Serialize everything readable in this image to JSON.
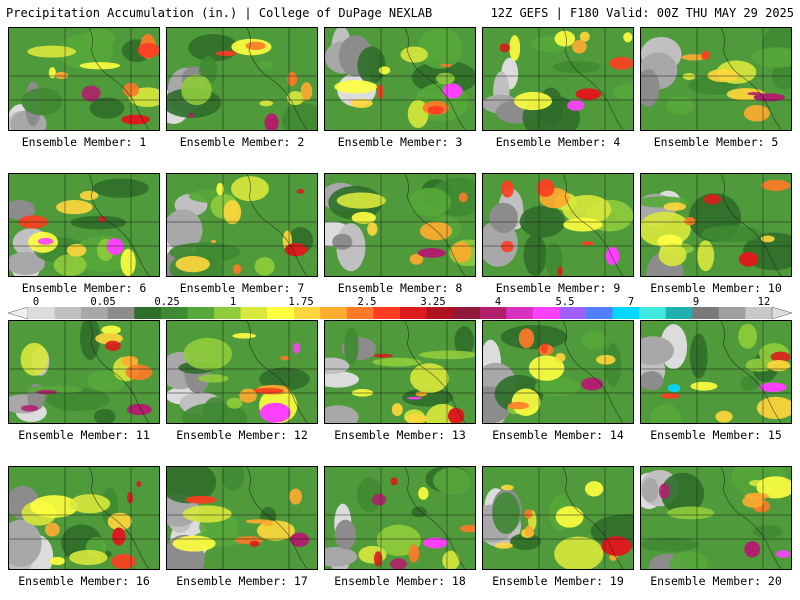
{
  "header": {
    "left": "Precipitation Accumulation (in.) | College of DuPage NEXLAB",
    "right": "12Z GEFS | F180 Valid: 00Z THU MAY 29 2025"
  },
  "legend": {
    "labels": [
      "0",
      "0.05",
      "0.25",
      "1",
      "1.75",
      "2.5",
      "3.25",
      "4",
      "5.5",
      "7",
      "9",
      "12"
    ],
    "colors": [
      "#dcdcdc",
      "#c0c0c0",
      "#a8a8a8",
      "#8c8c8c",
      "#2f6e2a",
      "#3f8a32",
      "#56a83a",
      "#8fcc3c",
      "#d8e83c",
      "#ffff40",
      "#ffd73c",
      "#ffab30",
      "#ff7a28",
      "#ff3c20",
      "#dc1c1c",
      "#b01420",
      "#901838",
      "#b0206c",
      "#d830c0",
      "#ff40ff",
      "#a060ff",
      "#5080ff",
      "#00d8ff",
      "#40e8e0",
      "#20b0b0",
      "#7a7a7a",
      "#a0a0a0",
      "#c8c8c8"
    ]
  },
  "members": [
    {
      "label": "Ensemble Member: 1"
    },
    {
      "label": "Ensemble Member: 2"
    },
    {
      "label": "Ensemble Member: 3"
    },
    {
      "label": "Ensemble Member: 4"
    },
    {
      "label": "Ensemble Member: 5"
    },
    {
      "label": "Ensemble Member: 6"
    },
    {
      "label": "Ensemble Member: 7"
    },
    {
      "label": "Ensemble Member: 8"
    },
    {
      "label": "Ensemble Member: 9"
    },
    {
      "label": "Ensemble Member: 10"
    },
    {
      "label": "Ensemble Member: 11"
    },
    {
      "label": "Ensemble Member: 12"
    },
    {
      "label": "Ensemble Member: 13"
    },
    {
      "label": "Ensemble Member: 14"
    },
    {
      "label": "Ensemble Member: 15"
    },
    {
      "label": "Ensemble Member: 16"
    },
    {
      "label": "Ensemble Member: 17"
    },
    {
      "label": "Ensemble Member: 18"
    },
    {
      "label": "Ensemble Member: 19"
    },
    {
      "label": "Ensemble Member: 20"
    }
  ]
}
